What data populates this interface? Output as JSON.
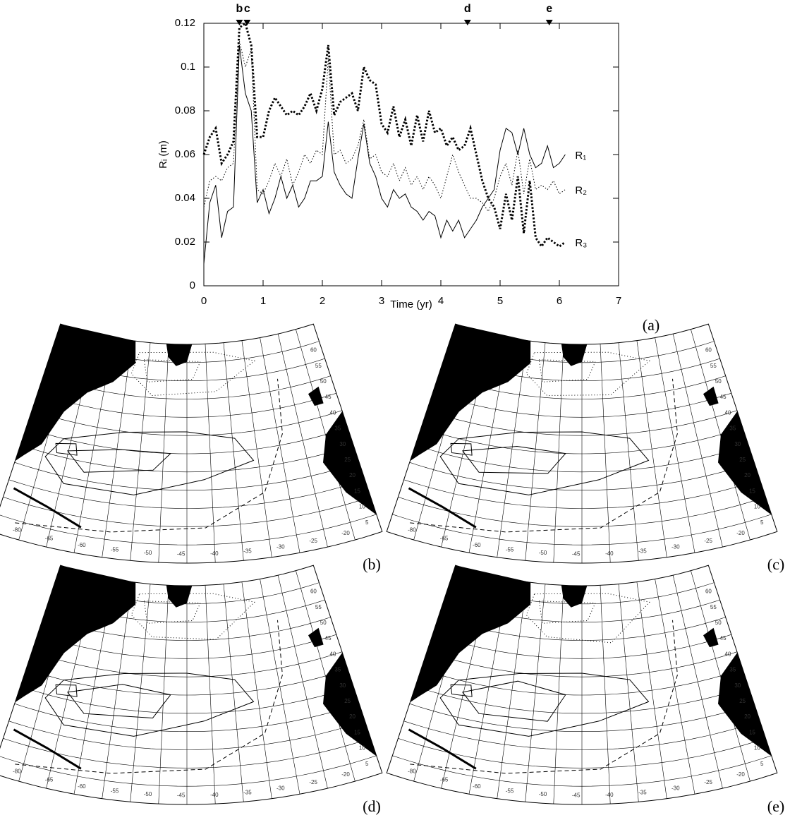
{
  "chart_data": {
    "type": "line",
    "panel_label": "(a)",
    "xlabel": "Time (yr)",
    "ylabel": "Rᵢ (m)",
    "x": [
      0,
      0.1,
      0.2,
      0.3,
      0.4,
      0.5,
      0.6,
      0.7,
      0.8,
      0.9,
      1,
      1.1,
      1.2,
      1.3,
      1.4,
      1.5,
      1.6,
      1.7,
      1.8,
      1.9,
      2,
      2.1,
      2.2,
      2.3,
      2.4,
      2.5,
      2.6,
      2.7,
      2.8,
      2.9,
      3,
      3.1,
      3.2,
      3.3,
      3.4,
      3.5,
      3.6,
      3.7,
      3.8,
      3.9,
      4,
      4.1,
      4.2,
      4.3,
      4.4,
      4.5,
      4.6,
      4.7,
      4.8,
      4.9,
      5,
      5.1,
      5.2,
      5.3,
      5.4,
      5.5,
      5.6,
      5.7,
      5.8,
      5.9,
      6,
      6.1
    ],
    "series": [
      {
        "name": "R₁",
        "color": "#000000",
        "style": "solid",
        "values": [
          0.01,
          0.038,
          0.046,
          0.022,
          0.034,
          0.036,
          0.11,
          0.088,
          0.08,
          0.038,
          0.044,
          0.033,
          0.04,
          0.05,
          0.04,
          0.046,
          0.036,
          0.04,
          0.048,
          0.048,
          0.05,
          0.075,
          0.052,
          0.046,
          0.042,
          0.04,
          0.058,
          0.074,
          0.056,
          0.05,
          0.04,
          0.036,
          0.044,
          0.04,
          0.042,
          0.036,
          0.034,
          0.03,
          0.034,
          0.032,
          0.022,
          0.03,
          0.025,
          0.03,
          0.022,
          0.026,
          0.03,
          0.036,
          0.04,
          0.044,
          0.062,
          0.072,
          0.07,
          0.06,
          0.072,
          0.06,
          0.054,
          0.056,
          0.064,
          0.054,
          0.056,
          0.06
        ]
      },
      {
        "name": "R₂",
        "color": "#000000",
        "style": "dotted",
        "values": [
          0.036,
          0.048,
          0.05,
          0.048,
          0.054,
          0.056,
          0.112,
          0.1,
          0.108,
          0.044,
          0.042,
          0.048,
          0.056,
          0.05,
          0.058,
          0.046,
          0.052,
          0.06,
          0.056,
          0.062,
          0.06,
          0.104,
          0.06,
          0.062,
          0.056,
          0.058,
          0.064,
          0.076,
          0.058,
          0.06,
          0.052,
          0.05,
          0.056,
          0.048,
          0.054,
          0.046,
          0.05,
          0.044,
          0.05,
          0.046,
          0.04,
          0.05,
          0.06,
          0.052,
          0.046,
          0.04,
          0.04,
          0.038,
          0.034,
          0.04,
          0.05,
          0.056,
          0.046,
          0.062,
          0.042,
          0.058,
          0.044,
          0.046,
          0.044,
          0.048,
          0.042,
          0.044
        ]
      },
      {
        "name": "R₃",
        "color": "#000000",
        "style": "bold-dotted",
        "values": [
          0.06,
          0.068,
          0.072,
          0.056,
          0.06,
          0.066,
          0.118,
          0.12,
          0.11,
          0.068,
          0.068,
          0.08,
          0.086,
          0.082,
          0.078,
          0.08,
          0.078,
          0.082,
          0.088,
          0.08,
          0.09,
          0.11,
          0.078,
          0.084,
          0.086,
          0.088,
          0.08,
          0.1,
          0.094,
          0.092,
          0.074,
          0.07,
          0.082,
          0.068,
          0.076,
          0.064,
          0.078,
          0.066,
          0.08,
          0.07,
          0.072,
          0.064,
          0.068,
          0.062,
          0.064,
          0.072,
          0.06,
          0.048,
          0.04,
          0.036,
          0.026,
          0.042,
          0.03,
          0.05,
          0.024,
          0.048,
          0.022,
          0.018,
          0.022,
          0.02,
          0.018,
          0.02
        ]
      }
    ],
    "markers": [
      {
        "label": "b",
        "x": 0.6
      },
      {
        "label": "c",
        "x": 0.73
      },
      {
        "label": "d",
        "x": 4.45
      },
      {
        "label": "e",
        "x": 5.83
      }
    ],
    "xlim": [
      0,
      7
    ],
    "xticks": [
      0,
      1,
      2,
      3,
      4,
      5,
      6,
      7
    ],
    "ylim": [
      0,
      0.12
    ],
    "yticks": [
      0,
      0.02,
      0.04,
      0.06,
      0.08,
      0.1,
      0.12
    ]
  },
  "maps": {
    "panels": [
      {
        "label": "(b)"
      },
      {
        "label": "(c)"
      },
      {
        "label": "(d)"
      },
      {
        "label": "(e)"
      }
    ],
    "lon_labels": [
      "-80",
      "-65",
      "-60",
      "-55",
      "-50",
      "-45",
      "-40",
      "-35",
      "-30",
      "-25",
      "-20"
    ],
    "lat_labels": [
      "5",
      "10",
      "15",
      "20",
      "25",
      "30",
      "35",
      "40",
      "45",
      "50",
      "55",
      "60"
    ]
  }
}
